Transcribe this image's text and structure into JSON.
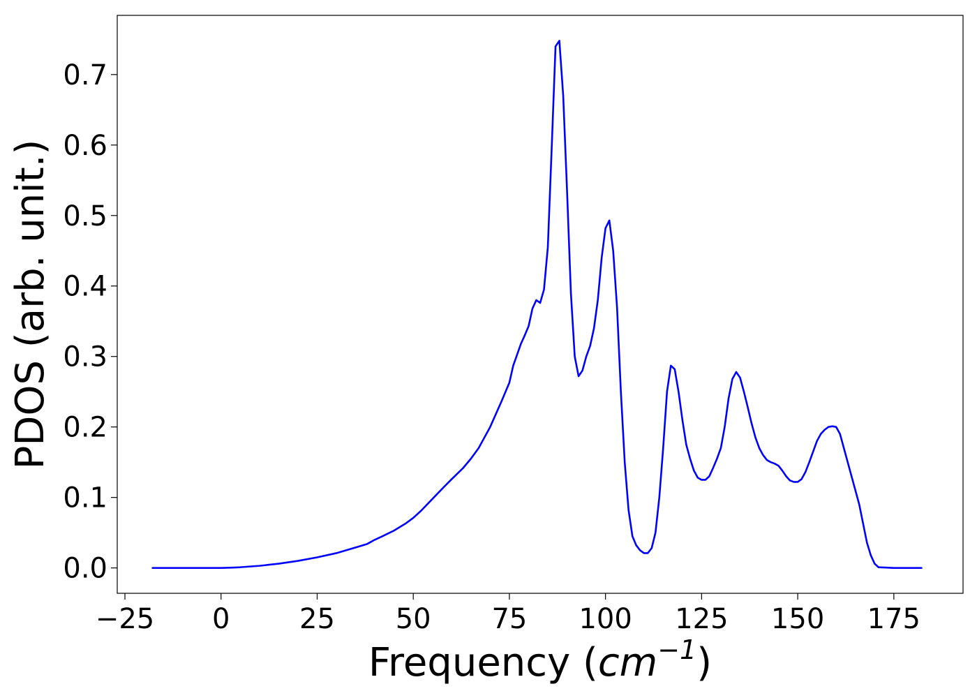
{
  "chart_data": {
    "type": "line",
    "title": "",
    "xlabel_text": "Frequency (",
    "xlabel_math_base": "cm",
    "xlabel_math_sup": "−1",
    "xlabel_close": ")",
    "ylabel": "PDOS (arb. unit.)",
    "xlim": [
      -27,
      193
    ],
    "ylim": [
      -0.036,
      0.784
    ],
    "xticks": [
      -25,
      0,
      25,
      50,
      75,
      100,
      125,
      150,
      175
    ],
    "xtick_labels": [
      "−25",
      "0",
      "25",
      "50",
      "75",
      "100",
      "125",
      "150",
      "175"
    ],
    "yticks": [
      0.0,
      0.1,
      0.2,
      0.3,
      0.4,
      0.5,
      0.6,
      0.7
    ],
    "ytick_labels": [
      "0.0",
      "0.1",
      "0.2",
      "0.3",
      "0.4",
      "0.5",
      "0.6",
      "0.7"
    ],
    "grid": false,
    "series": [
      {
        "color": "#0000ff",
        "x": [
          -17.8,
          -10,
          0,
          3,
          5,
          10,
          15,
          20,
          25,
          30,
          35,
          38,
          40,
          42,
          45,
          48,
          50,
          52,
          55,
          58,
          60,
          63,
          65,
          67,
          70,
          73,
          75,
          76,
          78,
          79,
          80,
          81,
          82,
          83,
          84,
          85,
          86,
          87,
          88,
          89,
          90,
          91,
          92,
          93,
          94,
          95,
          96,
          97,
          98,
          99,
          100,
          101,
          102,
          103,
          104,
          105,
          106,
          107,
          108,
          109,
          110,
          111,
          112,
          113,
          114,
          115,
          116,
          117,
          118,
          119,
          120,
          121,
          122,
          123,
          124,
          125,
          126,
          127,
          128,
          129,
          130,
          131,
          132,
          133,
          134,
          135,
          136,
          137,
          138,
          139,
          140,
          141,
          142,
          143,
          144,
          145,
          146,
          147,
          148,
          149,
          150,
          151,
          152,
          153,
          154,
          155,
          156,
          157,
          158,
          159,
          160,
          161,
          162,
          163,
          164,
          165,
          166,
          167,
          168,
          169,
          170,
          171,
          175,
          182.2
        ],
        "y": [
          0.0,
          0.0,
          0.0,
          0.0005,
          0.001,
          0.003,
          0.006,
          0.01,
          0.015,
          0.021,
          0.029,
          0.034,
          0.04,
          0.045,
          0.053,
          0.063,
          0.071,
          0.081,
          0.098,
          0.115,
          0.126,
          0.142,
          0.155,
          0.17,
          0.2,
          0.237,
          0.263,
          0.287,
          0.318,
          0.33,
          0.343,
          0.368,
          0.38,
          0.376,
          0.395,
          0.455,
          0.595,
          0.74,
          0.748,
          0.67,
          0.535,
          0.39,
          0.3,
          0.272,
          0.28,
          0.3,
          0.315,
          0.34,
          0.38,
          0.44,
          0.482,
          0.493,
          0.45,
          0.37,
          0.25,
          0.15,
          0.082,
          0.045,
          0.032,
          0.025,
          0.021,
          0.021,
          0.028,
          0.05,
          0.1,
          0.17,
          0.25,
          0.287,
          0.282,
          0.25,
          0.21,
          0.175,
          0.155,
          0.138,
          0.128,
          0.125,
          0.125,
          0.13,
          0.142,
          0.155,
          0.17,
          0.2,
          0.24,
          0.268,
          0.278,
          0.27,
          0.25,
          0.228,
          0.205,
          0.185,
          0.17,
          0.16,
          0.153,
          0.15,
          0.148,
          0.145,
          0.138,
          0.13,
          0.124,
          0.122,
          0.122,
          0.126,
          0.136,
          0.15,
          0.165,
          0.18,
          0.19,
          0.196,
          0.2,
          0.201,
          0.2,
          0.19,
          0.17,
          0.15,
          0.13,
          0.11,
          0.09,
          0.063,
          0.036,
          0.018,
          0.006,
          0.001,
          0.0,
          0.0
        ]
      }
    ]
  }
}
